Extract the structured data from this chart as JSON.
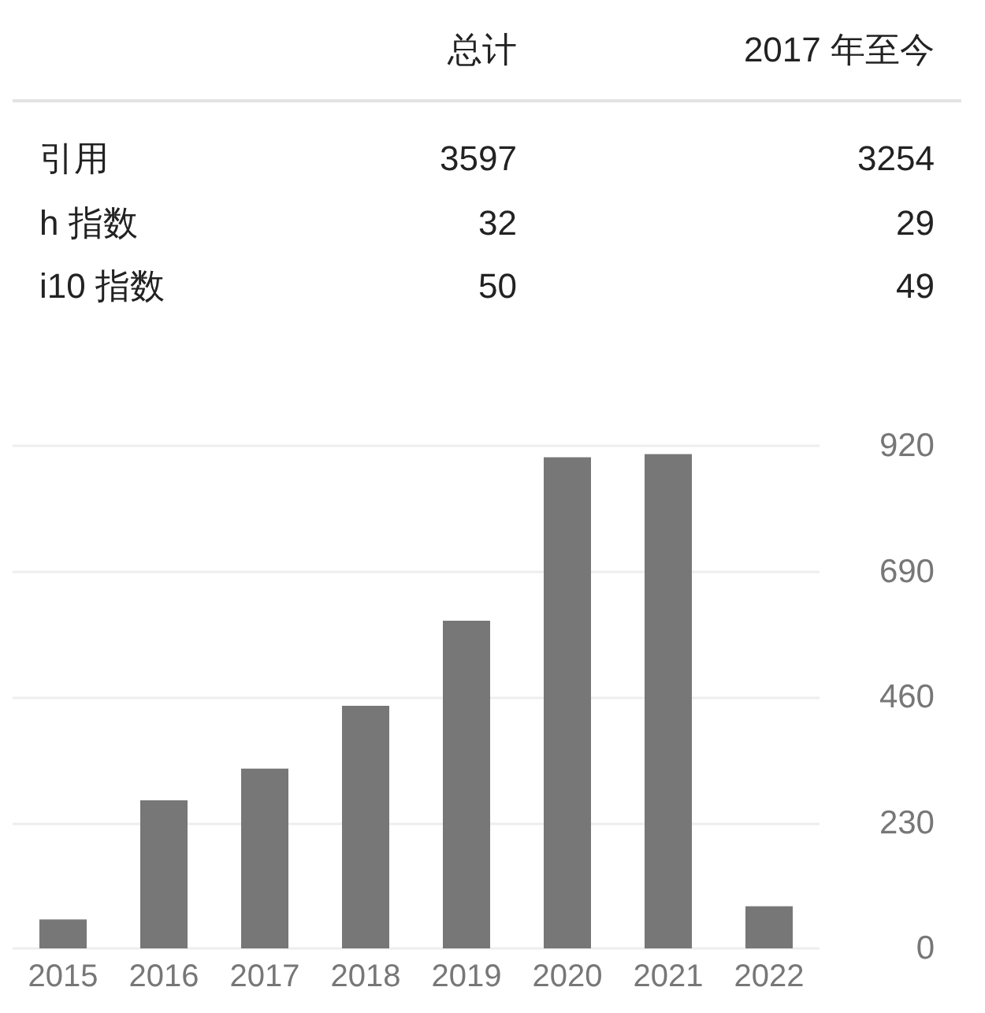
{
  "chart_data": [
    {
      "type": "other",
      "categories": [
        "总计",
        "2017 年至今"
      ],
      "series": [
        {
          "name": "引用",
          "values": [
            3597,
            3254
          ]
        },
        {
          "name": "h 指数",
          "values": [
            32,
            29
          ]
        },
        {
          "name": "i10 指数",
          "values": [
            50,
            49
          ]
        }
      ],
      "data_labels": true
    },
    {
      "type": "bar",
      "categories": [
        "2015",
        "2016",
        "2017",
        "2018",
        "2019",
        "2020",
        "2021",
        "2022"
      ],
      "values": [
        53,
        271,
        329,
        444,
        600,
        899,
        905,
        77
      ],
      "color": "#777777",
      "ylim": [
        0,
        920
      ],
      "yticks": [
        0,
        230,
        460,
        690,
        920
      ],
      "grid": "y"
    }
  ]
}
